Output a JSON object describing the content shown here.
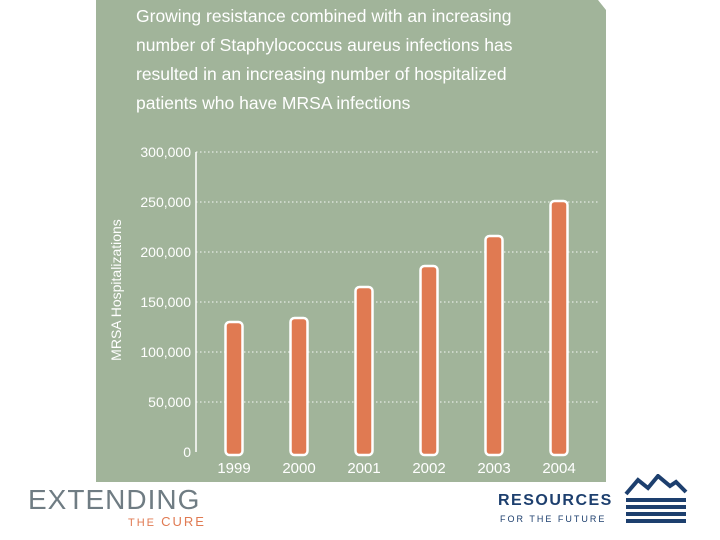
{
  "chart_data": {
    "type": "bar",
    "title": "Growing resistance combined with an increasing number of Staphylococcus aureus infections has resulted in an increasing number of hospitalized patients who have MRSA infections",
    "title_lines": [
      "Growing resistance combined with an increasing",
      "number of Staphylococcus aureus infections has",
      "resulted in an increasing number of hospitalized",
      "patients who have MRSA infections"
    ],
    "xlabel": "",
    "ylabel": "MRSA Hospitalizations",
    "categories": [
      "1999",
      "2000",
      "2001",
      "2002",
      "2003",
      "2004"
    ],
    "values": [
      130000,
      134000,
      165000,
      186000,
      216000,
      251000
    ],
    "ylim": [
      0,
      300000
    ],
    "yticks": [
      0,
      50000,
      100000,
      150000,
      200000,
      250000,
      300000
    ],
    "ytick_labels": [
      "0",
      "50,000",
      "100,000",
      "150,000",
      "200,000",
      "250,000",
      "300,000"
    ],
    "grid": "dotted horizontal",
    "colors": {
      "bar": "#e07a52",
      "background": "#a1b49a",
      "text": "#ffffff"
    }
  },
  "logos": {
    "left_main": "EXTENDING",
    "left_sub_small": "THE",
    "left_sub_big": "CURE",
    "right_main": "RESOURCES",
    "right_sub": "FOR THE FUTURE"
  }
}
